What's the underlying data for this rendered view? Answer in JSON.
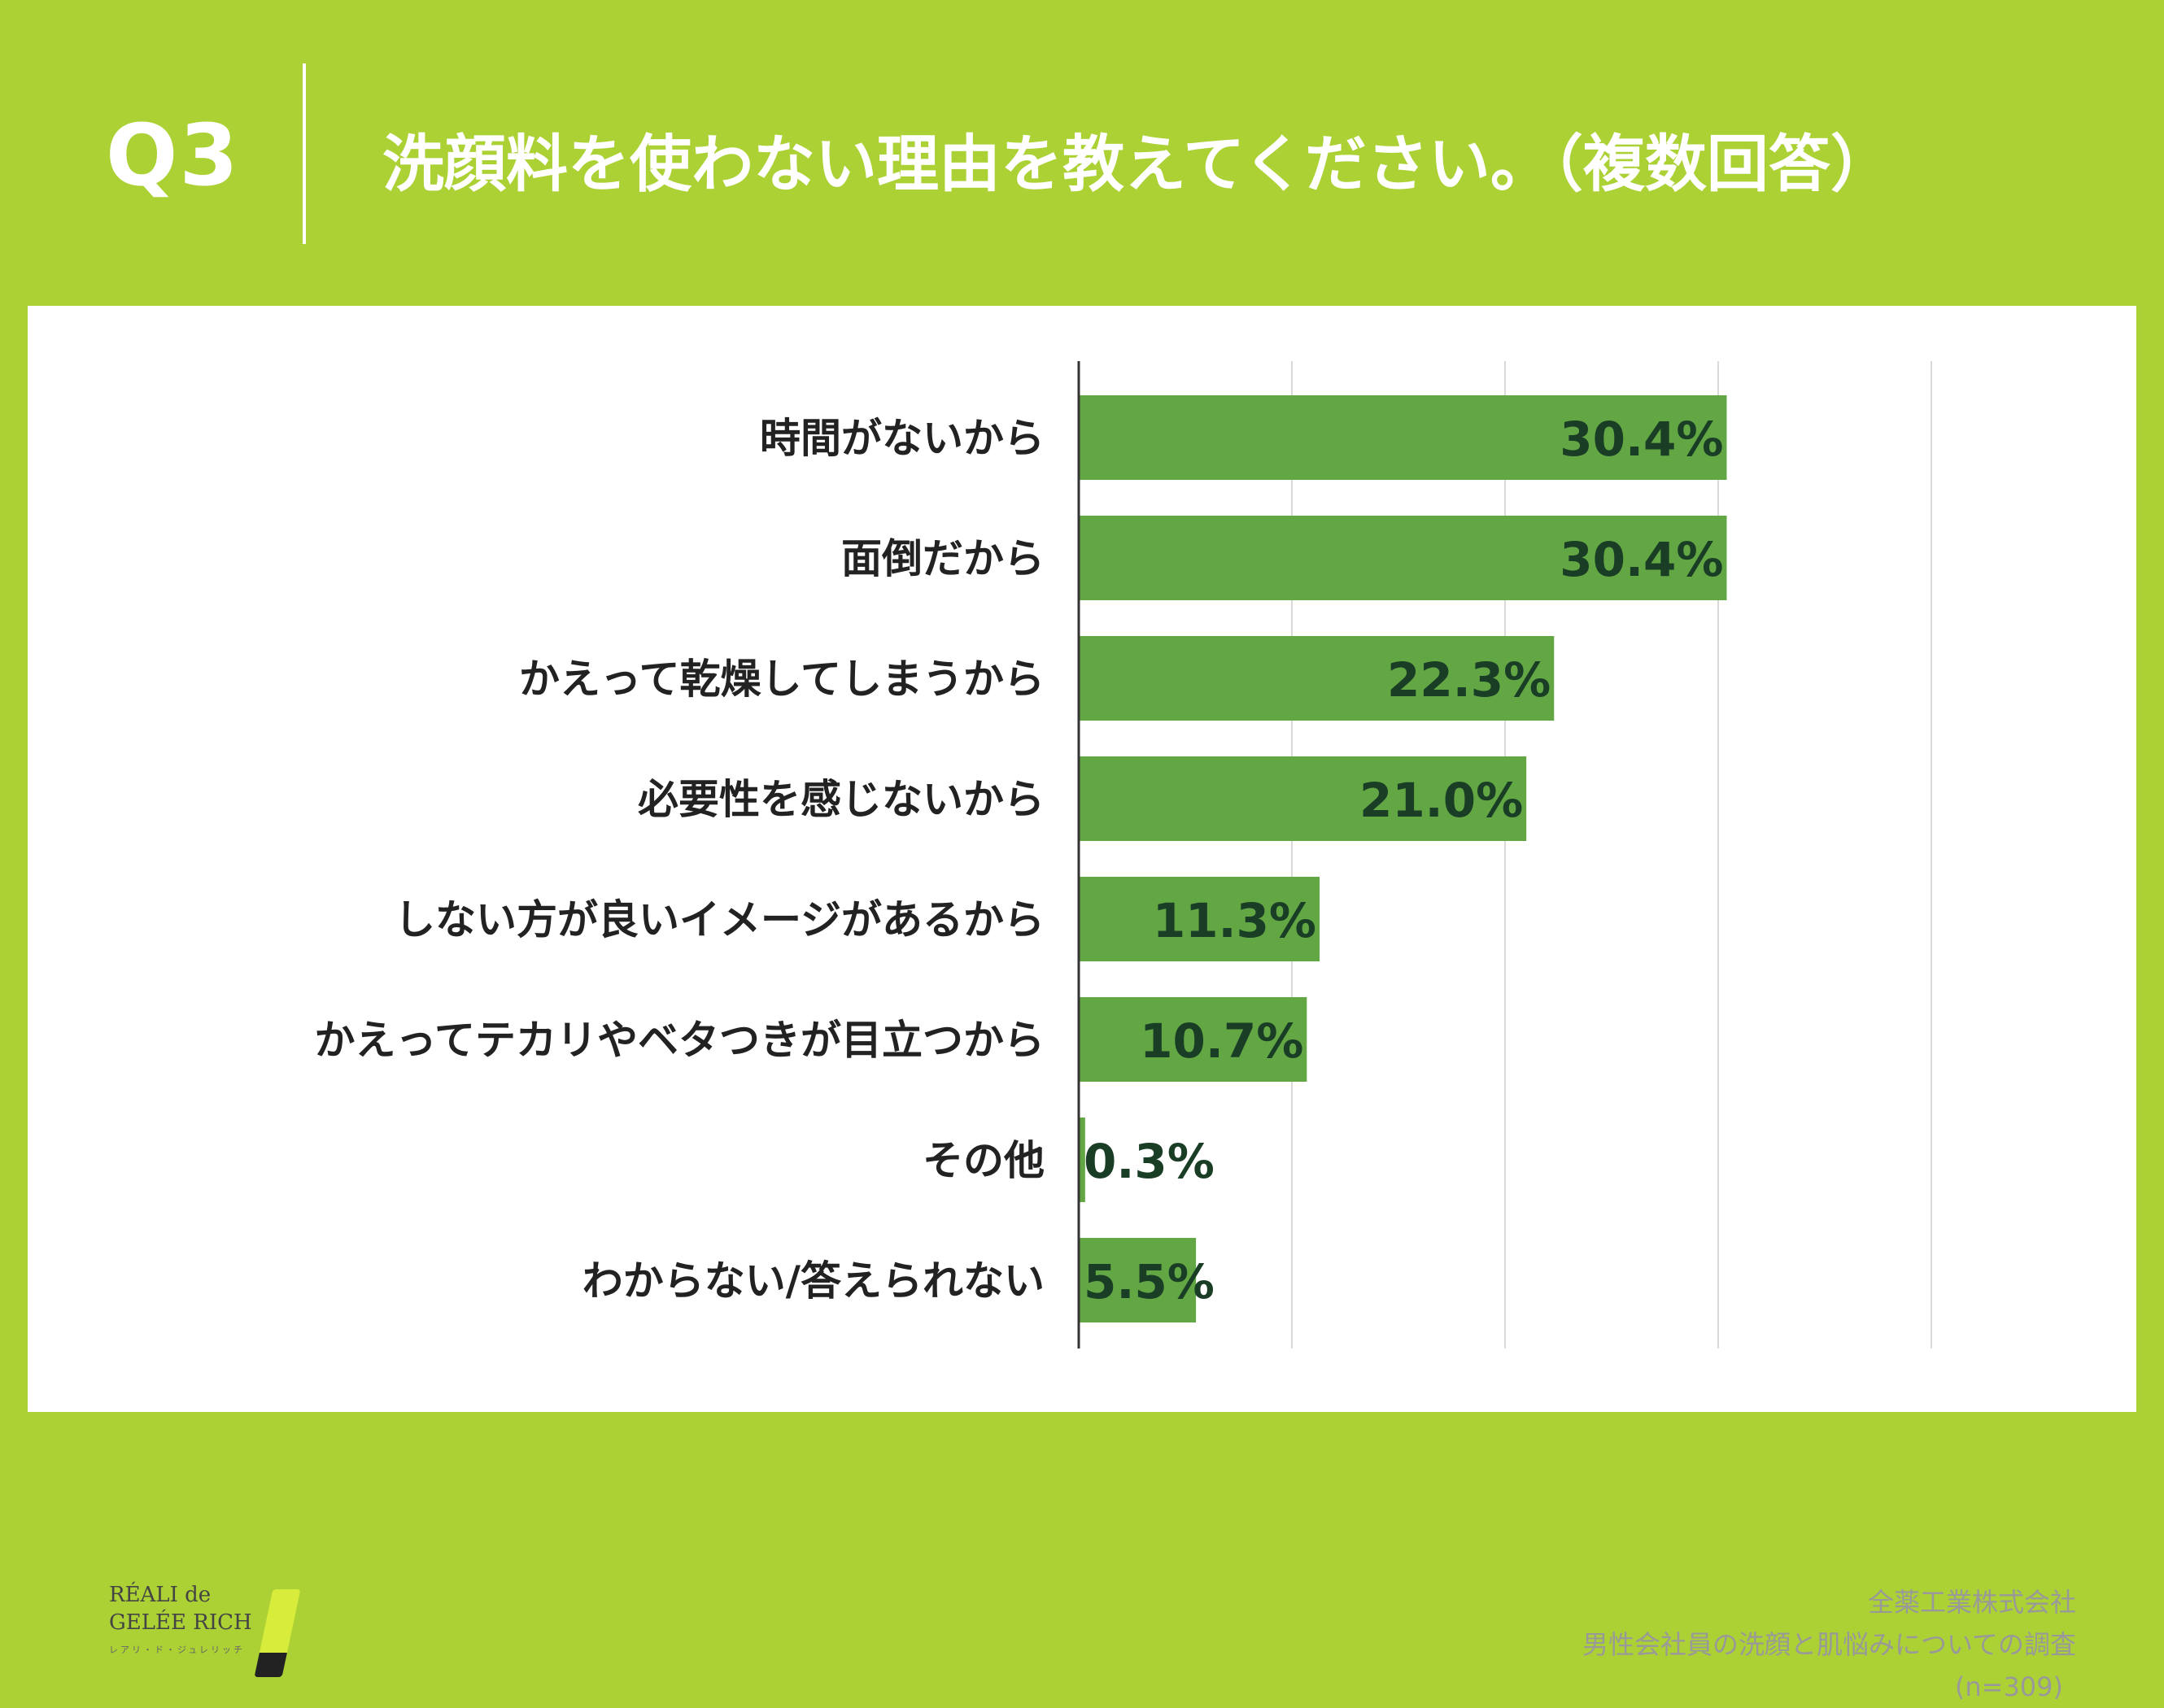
{
  "header": {
    "question_number": "Q3",
    "question_text": "洗顔料を使わない理由を教えてください。（複数回答）"
  },
  "source": {
    "company": "全薬工業株式会社",
    "survey": "男性会社員の洗顔と肌悩みについての調査",
    "sample": "(n=309)"
  },
  "logo": {
    "line1": "RÉALI de",
    "line2": "GELÉE RICH",
    "line3": "レアリ・ド・ジュレリッチ"
  },
  "colors": {
    "background": "#acd135",
    "bar": "#62a744",
    "value_label": "#1a3d26",
    "grid": "#d9d9d9"
  },
  "chart_data": {
    "type": "bar",
    "orientation": "horizontal",
    "categories": [
      "時間がないから",
      "面倒だから",
      "かえって乾燥してしまうから",
      "必要性を感じないから",
      "しない方が良いイメージがあるから",
      "かえってテカリやベタつきが目立つから",
      "その他",
      "わからない/答えられない"
    ],
    "values": [
      30.4,
      30.4,
      22.3,
      21.0,
      11.3,
      10.7,
      0.3,
      5.5
    ],
    "value_labels": [
      "30.4%",
      "30.4%",
      "22.3%",
      "21.0%",
      "11.3%",
      "10.7%",
      "0.3%",
      "5.5%"
    ],
    "xlim": [
      0,
      40
    ],
    "gridlines": [
      10,
      20,
      30,
      40
    ],
    "grid": true,
    "legend": "none"
  }
}
